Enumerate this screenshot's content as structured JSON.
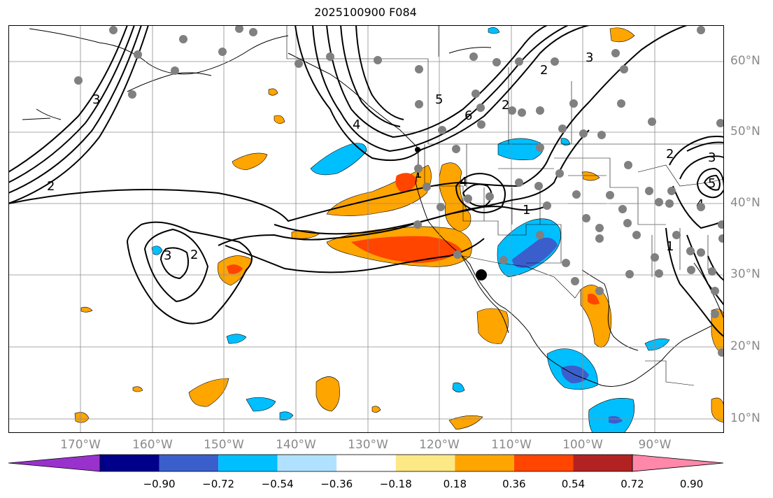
{
  "title": "2025100900 F084",
  "lon_labels": [
    "170°W",
    "160°W",
    "150°W",
    "140°W",
    "130°W",
    "120°W",
    "110°W",
    "100°W",
    "90°W"
  ],
  "lat_labels": [
    "60°N",
    "50°N",
    "40°N",
    "30°N",
    "20°N",
    "10°N"
  ],
  "colorbar": {
    "ticks": [
      "−0.90",
      "−0.72",
      "−0.54",
      "−0.36",
      "−0.18",
      "0.18",
      "0.36",
      "0.54",
      "0.72",
      "0.90"
    ],
    "colors": [
      "#9932cc",
      "#00008b",
      "#3a5fcd",
      "#00bfff",
      "#b0e2ff",
      "#ffffff",
      "#fce884",
      "#ffa500",
      "#ff4500",
      "#b22222",
      "#ff88aa"
    ]
  },
  "contour_labels": [
    "2",
    "3",
    "2",
    "1",
    "2",
    "3",
    "4",
    "5",
    "6",
    "1",
    "2",
    "3",
    "4",
    "1",
    "2",
    "3",
    "4",
    "5"
  ],
  "colors": {
    "contour": "#000000",
    "grid": "#8c8c8c",
    "station": "#808080",
    "coast": "#000000"
  }
}
